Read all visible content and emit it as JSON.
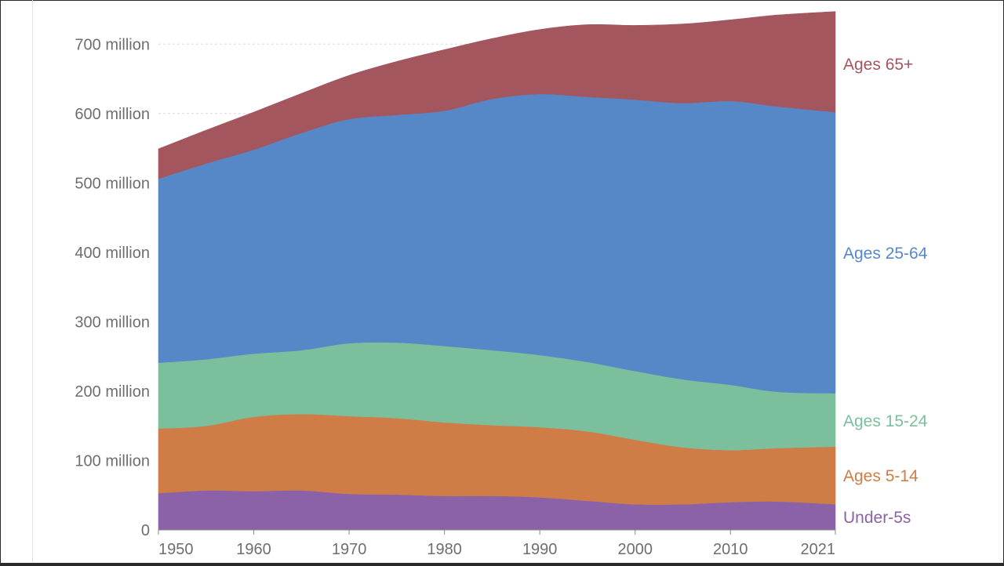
{
  "chart_data": {
    "type": "area",
    "stacked": true,
    "title": "",
    "xlabel": "",
    "ylabel": "",
    "x": [
      1950,
      1955,
      1960,
      1965,
      1970,
      1975,
      1980,
      1985,
      1990,
      1995,
      2000,
      2005,
      2010,
      2015,
      2021
    ],
    "xticks": [
      "1950",
      "1960",
      "1970",
      "1980",
      "1990",
      "2000",
      "2010",
      "2021"
    ],
    "yticks": [
      {
        "value": 0,
        "label": "0"
      },
      {
        "value": 100000000,
        "label": "100 million"
      },
      {
        "value": 200000000,
        "label": "200 million"
      },
      {
        "value": 300000000,
        "label": "300 million"
      },
      {
        "value": 400000000,
        "label": "400 million"
      },
      {
        "value": 500000000,
        "label": "500 million"
      },
      {
        "value": 600000000,
        "label": "600 million"
      },
      {
        "value": 700000000,
        "label": "700 million"
      }
    ],
    "ylim": [
      0,
      750000000
    ],
    "grid": "horizontal-dashed",
    "legend": "right-inline-labels",
    "series": [
      {
        "name": "Under-5s",
        "color": "#8b62a8",
        "values": [
          53000000,
          57000000,
          56000000,
          57000000,
          52000000,
          51000000,
          49000000,
          49000000,
          47000000,
          42000000,
          37000000,
          37000000,
          40000000,
          41000000,
          37000000
        ]
      },
      {
        "name": "Ages 5-14",
        "color": "#d07c46",
        "values": [
          93000000,
          93000000,
          107000000,
          110000000,
          112000000,
          110000000,
          106000000,
          102000000,
          101000000,
          100000000,
          93000000,
          82000000,
          75000000,
          77000000,
          83000000
        ]
      },
      {
        "name": "Ages 15-24",
        "color": "#7bbf9d",
        "values": [
          95000000,
          96000000,
          91000000,
          92000000,
          105000000,
          109000000,
          110000000,
          108000000,
          104000000,
          100000000,
          99000000,
          98000000,
          94000000,
          81000000,
          77000000
        ]
      },
      {
        "name": "Ages 25-64",
        "color": "#5688c8",
        "values": [
          265000000,
          282000000,
          294000000,
          313000000,
          323000000,
          328000000,
          339000000,
          362000000,
          376000000,
          382000000,
          391000000,
          398000000,
          409000000,
          411000000,
          405000000
        ]
      },
      {
        "name": "Ages 65+",
        "color": "#a3565e",
        "values": [
          43000000,
          48000000,
          54000000,
          57000000,
          63000000,
          77000000,
          88000000,
          87000000,
          93000000,
          104000000,
          107000000,
          114000000,
          117000000,
          132000000,
          145000000
        ]
      }
    ]
  }
}
